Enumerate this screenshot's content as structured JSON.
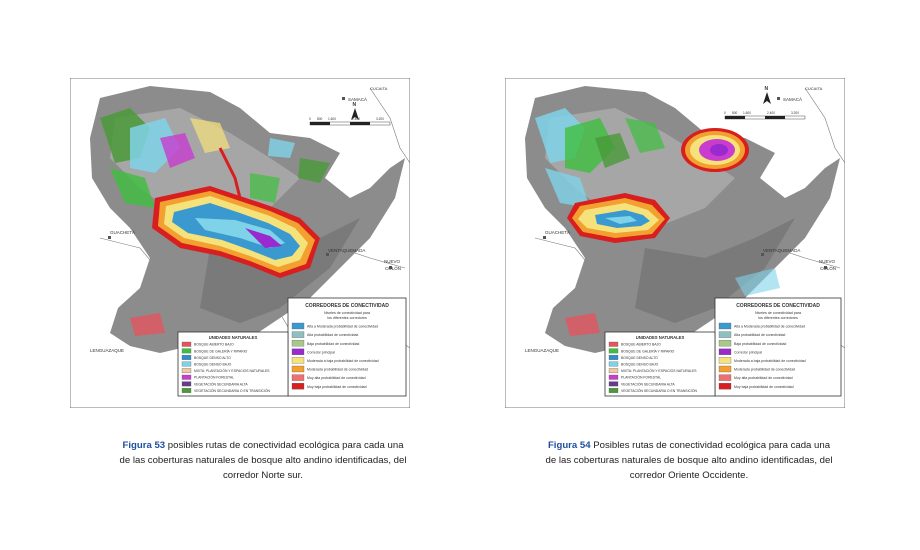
{
  "figures": [
    {
      "id": "left",
      "caption_label": "Figura 53",
      "caption_text": " posibles rutas de conectividad ecológica para cada una de las coberturas naturales de bosque alto andino identificadas, del corredor Norte sur.",
      "places": {
        "samaca": "SAMACÁ",
        "cucaita": "CUCAITA",
        "guacheta": "GUACHETÁ",
        "ventaquemada": "VENTAQUEMADA",
        "nuevo_colon_1": "NUEVO",
        "nuevo_colon_2": "COLÓN",
        "lenguazaque": "LENGUAZAQUE"
      },
      "scale_ticks": [
        "0",
        "800",
        "1.600",
        "2.400",
        "3.200"
      ],
      "unidades_title": "UNIDADES NATURALES",
      "unidades": [
        {
          "label": "BOSQUE ABIERTO BAJO",
          "color": "#e4555f"
        },
        {
          "label": "BOSQUE DE GALERÍA Y RIPARIO",
          "color": "#3fbf3f"
        },
        {
          "label": "BOSQUE DENSO ALTO",
          "color": "#2f8fd0"
        },
        {
          "label": "BOSQUE DENSO BAJO",
          "color": "#7fd3e8"
        },
        {
          "label": "MIXTA: PLANTACIÓN Y ESPACIOS NATURALES",
          "color": "#f0c8a0"
        },
        {
          "label": "PLANTACIÓN FORESTAL",
          "color": "#c83cd0"
        },
        {
          "label": "VEGETACIÓN SECUNDARIA ALTA",
          "color": "#6a3a8a"
        },
        {
          "label": "VEGETACIÓN SECUNDARIA O EN TRANSICIÓN",
          "color": "#4a9a3a"
        }
      ],
      "corredores_title": "CORREDORES DE CONECTIVIDAD",
      "corredores_subtitle_1": "Niveles de conectividad para",
      "corredores_subtitle_2": "los diferentes corredores",
      "corredores": [
        {
          "label": "Alta a Moderada probabilidad de conectividad",
          "color": "#3a9ad0"
        },
        {
          "label": "Alta probabilidad de conectividad",
          "color": "#8fbfbf"
        },
        {
          "label": "Baja probabilidad de conectividad",
          "color": "#a8c88a"
        },
        {
          "label": "Corredor principal",
          "color": "#9a2ad0"
        },
        {
          "label": "Moderada a baja probabilidad de conectividad",
          "color": "#f6e27a"
        },
        {
          "label": "Moderada probabilidad de conectividad",
          "color": "#f2a030"
        },
        {
          "label": "Muy alta probabilidad de conectividad",
          "color": "#f07070"
        },
        {
          "label": "Muy baja probabilidad de conectividad",
          "color": "#d81e1e"
        }
      ]
    },
    {
      "id": "right",
      "caption_label": "Figura 54",
      "caption_text": " Posibles rutas de conectividad ecológica para cada una de las coberturas naturales de bosque alto andino identificadas, del corredor Oriente Occidente.",
      "places": {
        "samaca": "SAMACÁ",
        "cucaita": "CUCAITA",
        "guacheta": "GUACHETÁ",
        "ventaquemada": "VENTAQUEMADA",
        "nuevo_colon_1": "NUEVO",
        "nuevo_colon_2": "COLÓN",
        "lenguazaque": "LENGUAZAQUE"
      },
      "scale_ticks": [
        "0",
        "800",
        "1.600",
        "2.400",
        "3.200"
      ],
      "unidades_title": "UNIDADES NATURALES",
      "unidades": [
        {
          "label": "BOSQUE ABIERTO BAJO",
          "color": "#e4555f"
        },
        {
          "label": "BOSQUE DE GALERÍA Y RIPARIO",
          "color": "#3fbf3f"
        },
        {
          "label": "BOSQUE DENSO ALTO",
          "color": "#2f8fd0"
        },
        {
          "label": "BOSQUE DENSO BAJO",
          "color": "#7fd3e8"
        },
        {
          "label": "MIXTA: PLANTACIÓN Y ESPACIOS NATURALES",
          "color": "#f0c8a0"
        },
        {
          "label": "PLANTACIÓN FORESTAL",
          "color": "#c83cd0"
        },
        {
          "label": "VEGETACIÓN SECUNDARIA ALTA",
          "color": "#6a3a8a"
        },
        {
          "label": "VEGETACIÓN SECUNDARIA O EN TRANSICIÓN",
          "color": "#4a9a3a"
        }
      ],
      "corredores_title": "CORREDORES DE CONECTIVIDAD",
      "corredores_subtitle_1": "Niveles de conectividad para",
      "corredores_subtitle_2": "los diferentes corredores",
      "corredores": [
        {
          "label": "Alta a Moderada probabilidad de conectividad",
          "color": "#3a9ad0"
        },
        {
          "label": "Alta probabilidad de conectividad",
          "color": "#8fbfbf"
        },
        {
          "label": "Baja probabilidad de conectividad",
          "color": "#a8c88a"
        },
        {
          "label": "Corredor principal",
          "color": "#9a2ad0"
        },
        {
          "label": "Moderada a baja probabilidad de conectividad",
          "color": "#f6e27a"
        },
        {
          "label": "Moderada probabilidad de conectividad",
          "color": "#f2a030"
        },
        {
          "label": "Muy alta probabilidad de conectividad",
          "color": "#f07070"
        },
        {
          "label": "Muy baja probabilidad de conectividad",
          "color": "#d81e1e"
        }
      ]
    }
  ]
}
